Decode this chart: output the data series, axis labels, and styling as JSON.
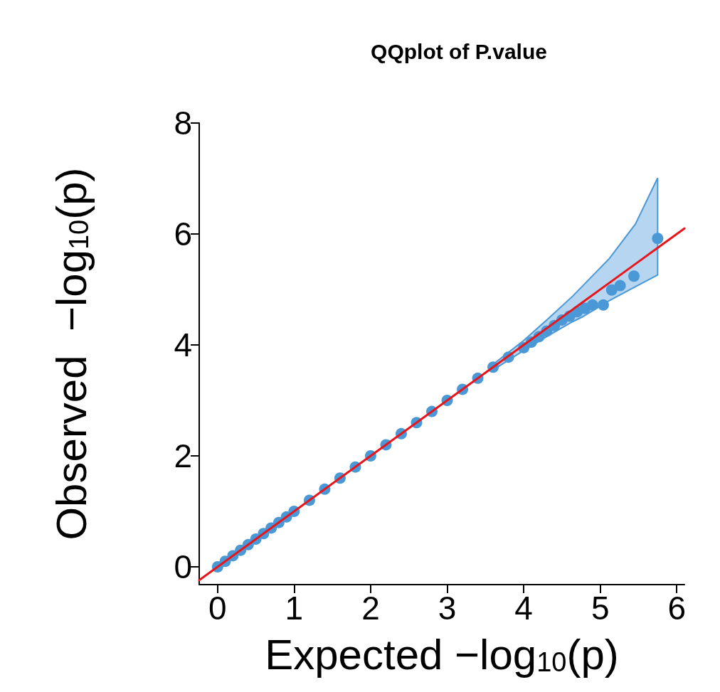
{
  "chart_data": {
    "type": "scatter",
    "title": "QQplot of P.value",
    "xlabel": "Expected −log$_{10}$(p)",
    "ylabel": "Observed  −log$_{10}$(p)",
    "xlim": [
      -0.24,
      6.1
    ],
    "ylim": [
      -0.32,
      8
    ],
    "xticks": [
      0,
      1,
      2,
      3,
      4,
      5,
      6
    ],
    "yticks": [
      0,
      2,
      4,
      6,
      8
    ],
    "grid": false,
    "marker": "circle",
    "series": [
      {
        "type": "line",
        "marker": "none",
        "line_style": "solid",
        "color": "#e8151b",
        "x": [
          -0.24,
          3.6,
          4.0,
          4.3,
          4.64,
          4.76,
          5.12,
          5.46,
          5.75,
          6.1
        ],
        "values": [
          -0.24,
          3.6,
          4.0,
          4.3,
          4.64,
          4.76,
          5.12,
          5.46,
          5.75,
          6.1
        ],
        "lower": [
          null,
          3.55,
          3.9,
          4.15,
          4.42,
          4.5,
          4.8,
          5.05,
          5.26,
          null
        ],
        "upper": [
          null,
          3.65,
          4.08,
          4.45,
          4.88,
          5.05,
          5.56,
          6.18,
          7.01,
          null
        ]
      },
      {
        "color": "#4a98d6",
        "x": [
          0.0,
          0.1,
          0.2,
          0.3,
          0.4,
          0.5,
          0.6,
          0.7,
          0.8,
          0.9,
          1.0,
          1.2,
          1.4,
          1.6,
          1.8,
          2.0,
          2.2,
          2.4,
          2.6,
          2.8,
          3.0,
          3.2,
          3.4,
          3.6,
          3.8,
          4.0,
          4.1,
          4.2,
          4.3,
          4.4,
          4.5,
          4.6,
          4.7,
          4.8,
          4.9,
          5.04,
          5.15,
          5.26,
          5.44,
          5.75
        ],
        "values": [
          0.0,
          0.1,
          0.2,
          0.3,
          0.4,
          0.5,
          0.6,
          0.7,
          0.8,
          0.9,
          1.0,
          1.2,
          1.4,
          1.6,
          1.8,
          2.0,
          2.2,
          2.4,
          2.6,
          2.8,
          3.0,
          3.2,
          3.4,
          3.6,
          3.78,
          3.95,
          4.05,
          4.15,
          4.25,
          4.35,
          4.45,
          4.52,
          4.6,
          4.66,
          4.72,
          4.72,
          4.99,
          5.07,
          5.24,
          5.92
        ]
      }
    ]
  }
}
